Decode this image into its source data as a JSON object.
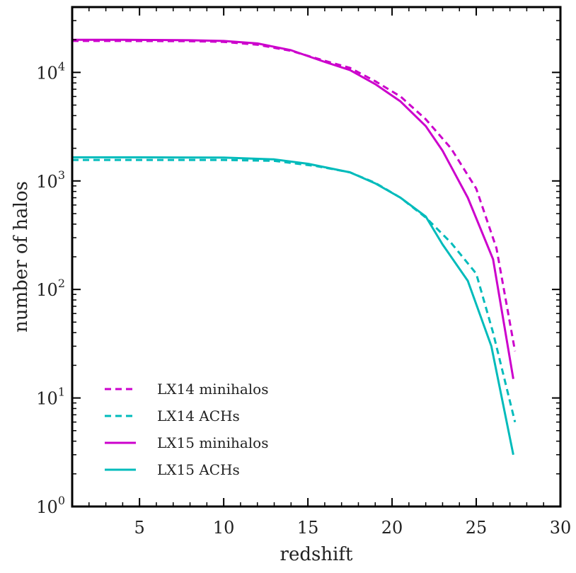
{
  "chart_data": {
    "type": "line",
    "title": "",
    "xlabel": "redshift",
    "ylabel": "number of halos",
    "xlim": [
      1,
      30
    ],
    "ylim": [
      1,
      40000
    ],
    "yscale": "log",
    "xticks": [
      {
        "value": 5,
        "label": "5"
      },
      {
        "value": 10,
        "label": "10"
      },
      {
        "value": 15,
        "label": "15"
      },
      {
        "value": 20,
        "label": "20"
      },
      {
        "value": 25,
        "label": "25"
      },
      {
        "value": 30,
        "label": "30"
      }
    ],
    "yticks": [
      {
        "value": 1,
        "base": "10",
        "exp": "0"
      },
      {
        "value": 10,
        "base": "10",
        "exp": "1"
      },
      {
        "value": 100,
        "base": "10",
        "exp": "2"
      },
      {
        "value": 1000,
        "base": "10",
        "exp": "3"
      },
      {
        "value": 10000,
        "base": "10",
        "exp": "4"
      }
    ],
    "grid": false,
    "legend_position": "bottom-left",
    "series": [
      {
        "name": "LX14 minihalos",
        "color": "#cc00cc",
        "style": "dashed",
        "x": [
          1,
          4,
          8,
          10,
          12,
          14,
          16,
          17.5,
          19,
          20.5,
          22,
          23.5,
          25,
          26.2,
          27.3
        ],
        "y": [
          19500,
          19500,
          19400,
          19100,
          18000,
          15800,
          12800,
          11000,
          8300,
          6000,
          3700,
          2000,
          850,
          240,
          27
        ]
      },
      {
        "name": "LX14 ACHs",
        "color": "#00bbbb",
        "style": "dashed",
        "x": [
          1,
          5,
          10,
          13,
          15.5,
          17.5,
          19,
          20.5,
          22,
          23.5,
          25,
          26,
          27.3
        ],
        "y": [
          1560,
          1560,
          1560,
          1530,
          1370,
          1200,
          960,
          700,
          460,
          270,
          140,
          40,
          6
        ]
      },
      {
        "name": "LX15 minihalos",
        "color": "#cc00cc",
        "style": "solid",
        "x": [
          1,
          4,
          8,
          10,
          12,
          14,
          16,
          17.5,
          19,
          20.5,
          22,
          23,
          24.5,
          26,
          27.2
        ],
        "y": [
          20000,
          20000,
          19800,
          19500,
          18500,
          16000,
          12500,
          10500,
          7800,
          5400,
          3200,
          1900,
          700,
          190,
          15
        ]
      },
      {
        "name": "LX15 ACHs",
        "color": "#00bbbb",
        "style": "solid",
        "x": [
          1,
          5,
          10,
          13,
          15,
          17.5,
          19,
          20.5,
          22,
          23,
          24.5,
          25.9,
          27.2
        ],
        "y": [
          1650,
          1650,
          1640,
          1580,
          1440,
          1200,
          950,
          700,
          470,
          260,
          120,
          30,
          3
        ]
      }
    ]
  }
}
